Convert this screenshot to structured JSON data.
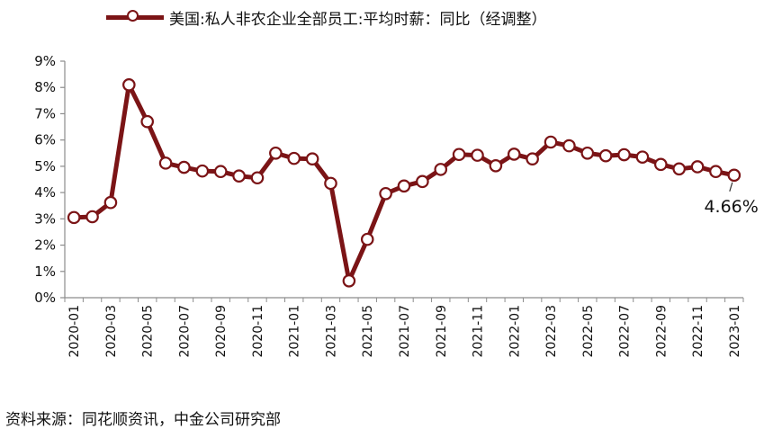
{
  "chart_data": {
    "type": "line",
    "title": "",
    "xlabel": "",
    "ylabel": "",
    "ylim": [
      0,
      9
    ],
    "y_tick_labels": [
      "0%",
      "1%",
      "2%",
      "3%",
      "4%",
      "5%",
      "6%",
      "7%",
      "8%",
      "9%"
    ],
    "x_tick_labels": [
      "2020-01",
      "2020-03",
      "2020-05",
      "2020-07",
      "2020-09",
      "2020-11",
      "2021-01",
      "2021-03",
      "2021-05",
      "2021-07",
      "2021-09",
      "2021-11",
      "2022-01",
      "2022-03",
      "2022-05",
      "2022-07",
      "2022-09",
      "2022-11",
      "2023-01"
    ],
    "x": [
      "2020-01",
      "2020-02",
      "2020-03",
      "2020-04",
      "2020-05",
      "2020-06",
      "2020-07",
      "2020-08",
      "2020-09",
      "2020-10",
      "2020-11",
      "2020-12",
      "2021-01",
      "2021-02",
      "2021-03",
      "2021-04",
      "2021-05",
      "2021-06",
      "2021-07",
      "2021-08",
      "2021-09",
      "2021-10",
      "2021-11",
      "2021-12",
      "2022-01",
      "2022-02",
      "2022-03",
      "2022-04",
      "2022-05",
      "2022-06",
      "2022-07",
      "2022-08",
      "2022-09",
      "2022-10",
      "2022-11",
      "2022-12",
      "2023-01"
    ],
    "series": [
      {
        "name": "美国:私人非农企业全部员工:平均时薪：同比（经调整）",
        "color": "#7b1416",
        "values": [
          3.05,
          3.08,
          3.62,
          8.1,
          6.7,
          5.12,
          4.96,
          4.82,
          4.8,
          4.63,
          4.56,
          5.5,
          5.3,
          5.28,
          4.35,
          0.64,
          2.22,
          3.96,
          4.25,
          4.42,
          4.88,
          5.45,
          5.42,
          5.02,
          5.46,
          5.28,
          5.92,
          5.78,
          5.5,
          5.4,
          5.44,
          5.35,
          5.07,
          4.9,
          4.98,
          4.8,
          4.66
        ]
      }
    ],
    "end_label": "4.66%",
    "legend_position": "top-center",
    "grid": false
  },
  "footer": {
    "source": "资料来源：同花顺资讯，中金公司研究部"
  }
}
